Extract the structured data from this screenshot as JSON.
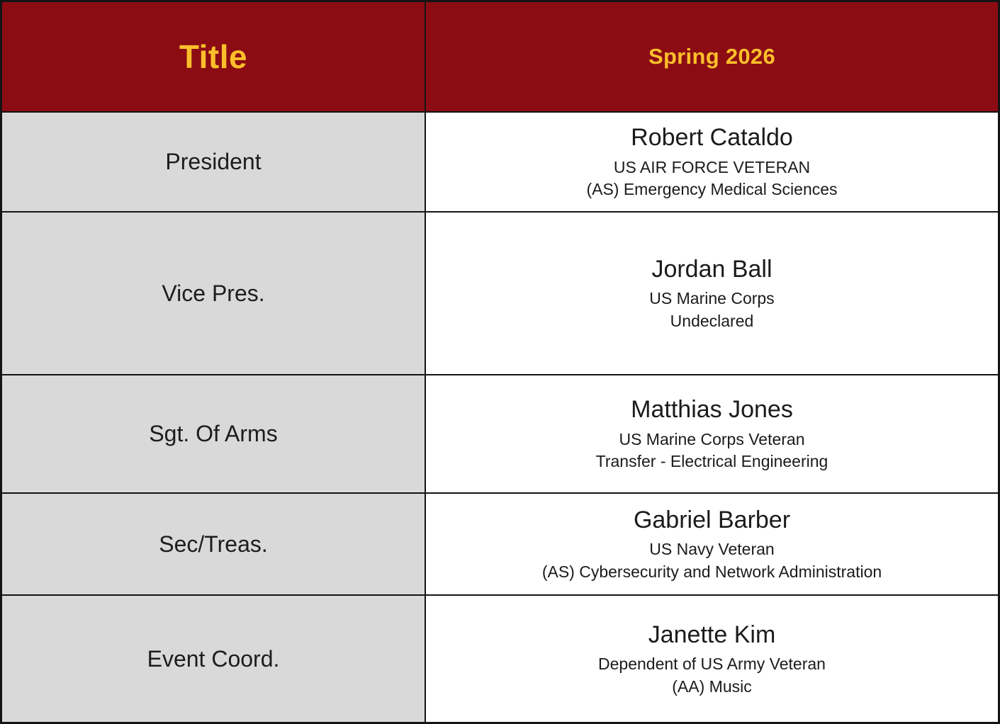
{
  "table": {
    "header": {
      "title_col": "Title",
      "value_col": "Spring 2026"
    },
    "rows": [
      {
        "title": "President",
        "name": "Robert Cataldo",
        "service": "US AIR FORCE VETERAN",
        "program": "(AS) Emergency Medical Sciences"
      },
      {
        "title": "Vice Pres.",
        "name": "Jordan Ball",
        "service": "US Marine Corps",
        "program": "Undeclared"
      },
      {
        "title": "Sgt. Of Arms",
        "name": "Matthias Jones",
        "service": "US Marine Corps Veteran",
        "program": "Transfer - Electrical Engineering"
      },
      {
        "title": "Sec/Treas.",
        "name": "Gabriel Barber",
        "service": "US Navy Veteran",
        "program": "(AS) Cybersecurity and Network Administration"
      },
      {
        "title": "Event Coord.",
        "name": "Janette Kim",
        "service": "Dependent of US Army Veteran",
        "program": "(AA) Music"
      }
    ],
    "colors": {
      "header_bg": "#8B0D13",
      "header_text": "#FCBF2B",
      "title_col_bg": "#D9D9D9",
      "value_col_bg": "#FFFFFF",
      "border": "#141414",
      "body_text": "#1B1B1B"
    }
  }
}
